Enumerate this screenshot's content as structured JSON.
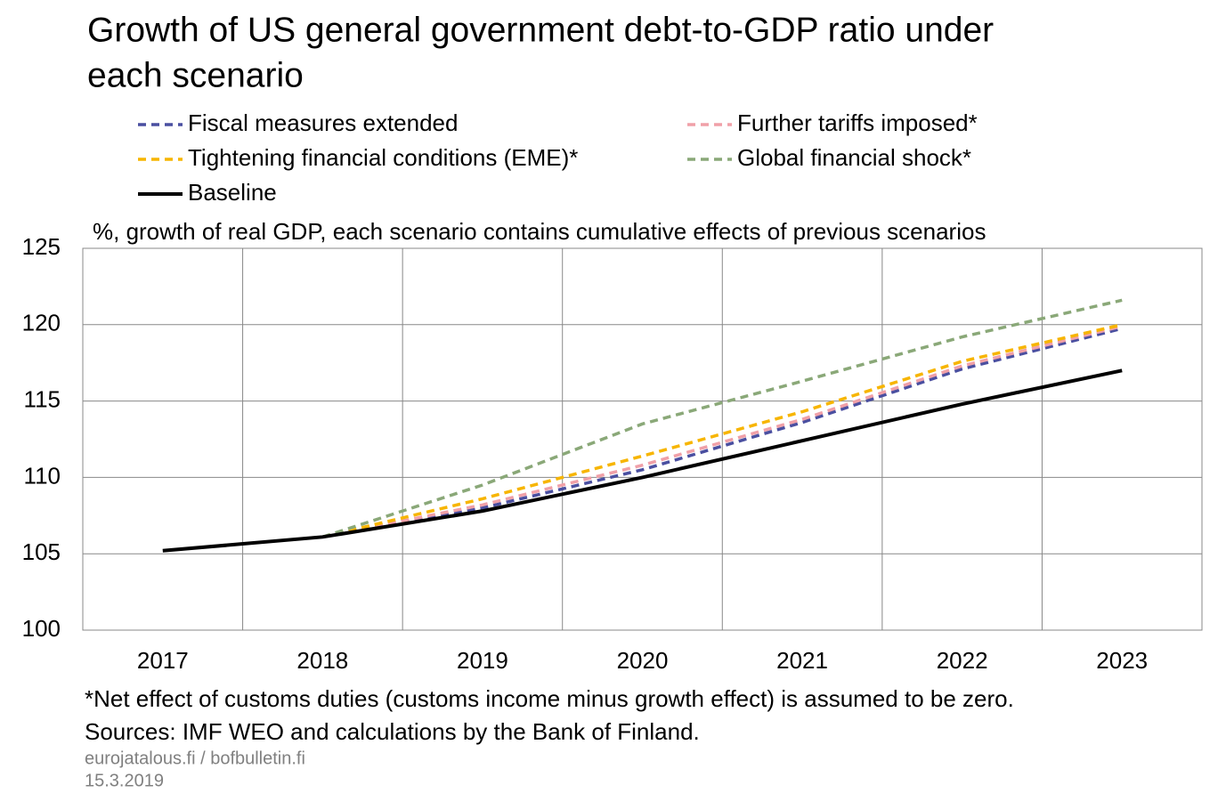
{
  "chart_data": {
    "type": "line",
    "title": [
      "Growth of US general government debt-to-GDP ratio under",
      "each scenario"
    ],
    "subtitle": "%, growth of real GDP, each scenario contains cumulative effects of previous scenarios",
    "categories": [
      "2017",
      "2018",
      "2019",
      "2020",
      "2021",
      "2022",
      "2023"
    ],
    "series": [
      {
        "name": "Fiscal measures extended",
        "color": "#4a4fa0",
        "dashed": true,
        "values": [
          null,
          106.1,
          108.0,
          110.5,
          113.6,
          117.1,
          119.75
        ]
      },
      {
        "name": "Further tariffs imposed*",
        "color": "#f0a0a8",
        "dashed": true,
        "values": [
          null,
          106.1,
          108.2,
          110.8,
          113.8,
          117.3,
          119.9
        ]
      },
      {
        "name": "Tightening financial conditions (EME)*",
        "color": "#f7b500",
        "dashed": true,
        "values": [
          null,
          106.1,
          108.6,
          111.4,
          114.3,
          117.6,
          120.0
        ]
      },
      {
        "name": "Global financial shock*",
        "color": "#8aa878",
        "dashed": true,
        "values": [
          null,
          106.1,
          109.5,
          113.5,
          116.3,
          119.2,
          121.6
        ]
      },
      {
        "name": "Baseline",
        "color": "#000000",
        "dashed": false,
        "values": [
          105.2,
          106.1,
          107.8,
          110.0,
          112.4,
          114.8,
          117.0
        ]
      }
    ],
    "ylim": [
      100,
      125
    ],
    "yticks": [
      100,
      105,
      110,
      115,
      120,
      125
    ],
    "grid": true,
    "footnotes": [
      "*Net effect of customs duties (customs income minus growth effect) is assumed to be zero.",
      "Sources: IMF WEO and calculations by the Bank of Finland."
    ],
    "source": [
      "eurojatalous.fi / bofbulletin.fi",
      "15.3.2019"
    ]
  }
}
